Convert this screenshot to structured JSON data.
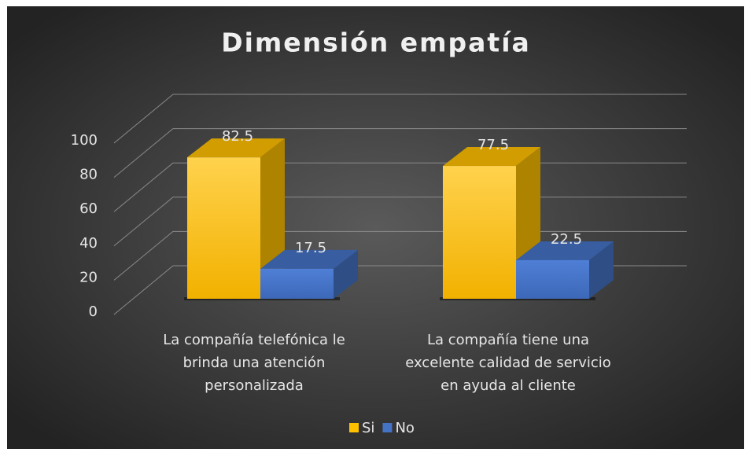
{
  "chart_data": {
    "type": "bar3d",
    "title": "Dimensión empatía",
    "categories": [
      "La compañía telefónica le brinda una atención personalizada",
      "La compañía tiene una excelente calidad de servicio en ayuda al cliente"
    ],
    "series": [
      {
        "name": "Si",
        "color": "#FFC000",
        "values": [
          82.5,
          77.5
        ]
      },
      {
        "name": "No",
        "color": "#4472C4",
        "values": [
          17.5,
          22.5
        ]
      }
    ],
    "ylim": [
      0,
      100
    ],
    "yticks": [
      0,
      20,
      40,
      60,
      80,
      100
    ],
    "grid": true,
    "legend": "bottom"
  }
}
